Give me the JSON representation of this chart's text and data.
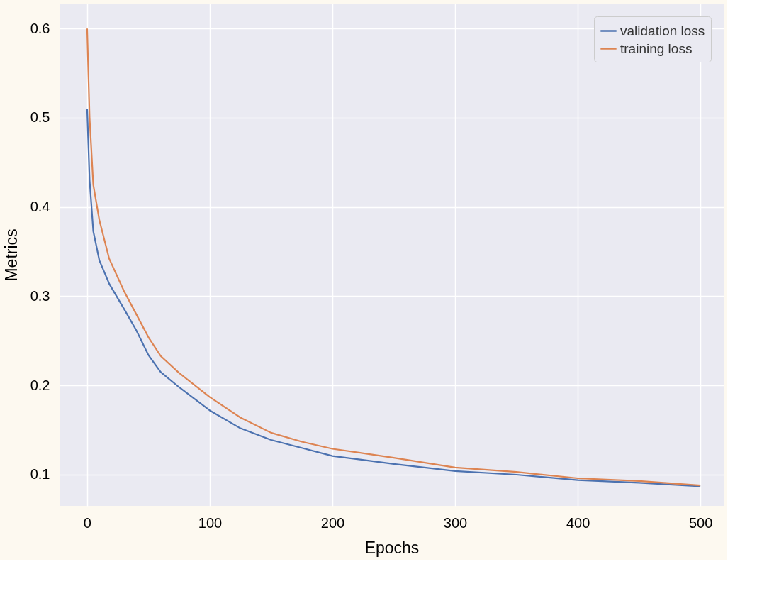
{
  "chart_data": {
    "type": "line",
    "xlabel": "Epochs",
    "ylabel": "Metrics",
    "xlim": [
      -22.5,
      519
    ],
    "ylim": [
      0.065,
      0.628
    ],
    "xticks": [
      0,
      100,
      200,
      300,
      400,
      500
    ],
    "yticks": [
      0.1,
      0.2,
      0.3,
      0.4,
      0.5,
      0.6
    ],
    "grid": true,
    "legend": "top right",
    "marker": "none",
    "line_style": "solid",
    "series": [
      {
        "name": "validation loss",
        "color": "#4c72b0",
        "x": [
          0,
          2,
          5,
          10,
          18,
          30,
          40,
          50,
          60,
          75,
          100,
          125,
          150,
          175,
          200,
          250,
          300,
          350,
          400,
          450,
          500
        ],
        "values": [
          0.51,
          0.43,
          0.373,
          0.34,
          0.314,
          0.286,
          0.262,
          0.234,
          0.215,
          0.198,
          0.172,
          0.152,
          0.139,
          0.13,
          0.121,
          0.112,
          0.104,
          0.1,
          0.094,
          0.091,
          0.087
        ]
      },
      {
        "name": "training loss",
        "color": "#dd8452",
        "x": [
          0,
          2,
          5,
          10,
          18,
          30,
          40,
          50,
          60,
          75,
          100,
          125,
          150,
          175,
          200,
          250,
          300,
          350,
          400,
          450,
          500
        ],
        "values": [
          0.6,
          0.5,
          0.425,
          0.385,
          0.342,
          0.306,
          0.28,
          0.254,
          0.233,
          0.214,
          0.187,
          0.164,
          0.147,
          0.137,
          0.129,
          0.119,
          0.108,
          0.103,
          0.096,
          0.093,
          0.088
        ]
      }
    ]
  }
}
